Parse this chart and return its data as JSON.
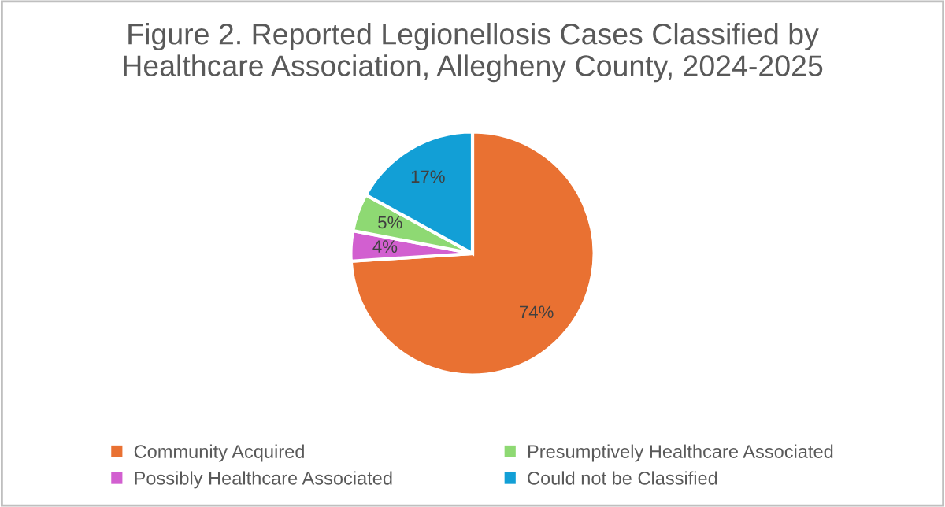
{
  "chart_data": {
    "type": "pie",
    "title": "Figure 2. Reported Legionellosis Cases Classified by\nHealthcare Association, Allegheny County, 2024-2025",
    "categories": [
      "Community Acquired",
      "Possibly Healthcare Associated",
      "Presumptively Healthcare Associated",
      "Could not be Classified"
    ],
    "values": [
      74,
      4,
      5,
      17
    ],
    "colors": [
      "#e97132",
      "#d25fd0",
      "#8ed973",
      "#129fd6"
    ],
    "value_labels": [
      "74%",
      "4%",
      "5%",
      "17%"
    ],
    "legend": "bottom"
  }
}
